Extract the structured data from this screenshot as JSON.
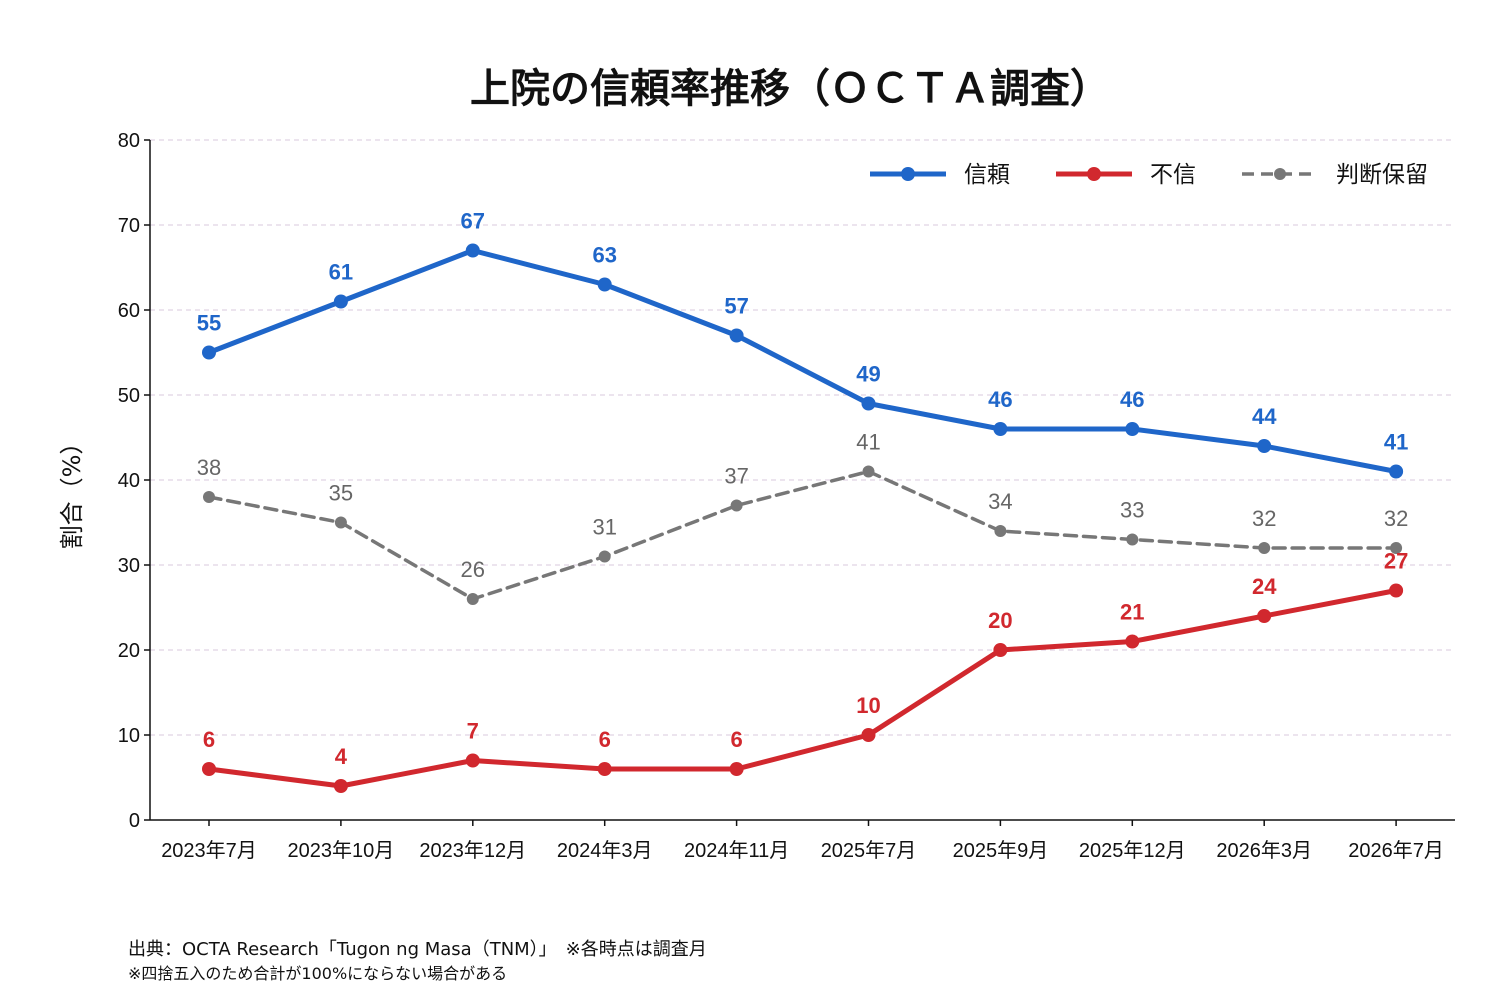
{
  "chart_data": {
    "type": "line",
    "title": "上院の信頼率推移（ＯＣＴＡ調査）",
    "ylabel": "割合（%）",
    "xlabel": "",
    "ylim": [
      0,
      80
    ],
    "yticks": [
      0,
      10,
      20,
      30,
      40,
      50,
      60,
      70,
      80
    ],
    "grid": true,
    "legend_position": "top-right",
    "categories": [
      "2023年7月",
      "2023年10月",
      "2023年12月",
      "2024年3月",
      "2024年11月",
      "2025年7月",
      "2025年9月",
      "2025年12月",
      "2026年3月",
      "2026年7月"
    ],
    "series": [
      {
        "name": "信頼",
        "color": "#1f66c9",
        "style": "solid",
        "values": [
          55,
          61,
          67,
          63,
          57,
          49,
          46,
          46,
          44,
          41
        ]
      },
      {
        "name": "不信",
        "color": "#d1282e",
        "style": "solid",
        "values": [
          6,
          4,
          7,
          6,
          6,
          10,
          20,
          21,
          24,
          27
        ]
      },
      {
        "name": "判断保留",
        "color": "#777777",
        "style": "dashed",
        "values": [
          38,
          35,
          26,
          31,
          37,
          41,
          34,
          33,
          32,
          32
        ]
      }
    ]
  },
  "notes": {
    "source": "出典：OCTA Research「Tugon ng Masa（TNM）」　※各時点は調査月",
    "rounding": "※四捨五入のため合計が100%にならない場合がある"
  }
}
